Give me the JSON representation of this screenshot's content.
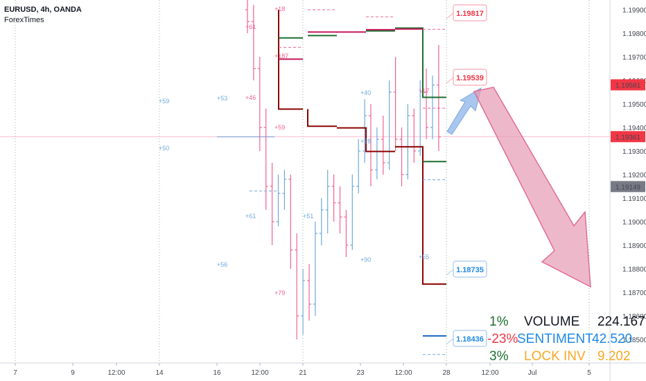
{
  "header": {
    "symbol_line": "EURUSD, 4h, OANDA",
    "source": "ForexTimes"
  },
  "colors": {
    "up": "#6fa8dc",
    "down": "#f06292",
    "dark_red": "#8b0000",
    "dark_green": "#1b6e2e",
    "magenta": "#c2185b",
    "arrow": "#e79ab5",
    "price_badge_red": "#f23645",
    "price_badge_gray": "#787b86",
    "blue_text": "#1e88e5",
    "orange_text": "#f9a825"
  },
  "chart_data": {
    "type": "candlestick-bars",
    "ylim": [
      1.1842,
      1.1997
    ],
    "y_ticks": [
      "1.19900",
      "1.19800",
      "1.19700",
      "1.19600",
      "1.19500",
      "1.19400",
      "1.19300",
      "1.19200",
      "1.19100",
      "1.19000",
      "1.18900",
      "1.18800",
      "1.18700",
      "1.18600",
      "1.18500"
    ],
    "x_ticks": [
      "7",
      "9",
      "12:00",
      "14",
      "16",
      "12:00",
      "21",
      "23",
      "12:00",
      "28",
      "12:00",
      "Jul",
      "5"
    ],
    "price_badges": [
      {
        "value": "1.19581",
        "color": "red"
      },
      {
        "value": "1.19361",
        "color": "red"
      },
      {
        "value": "1.19149",
        "color": "gray"
      }
    ],
    "level_labels": [
      {
        "value": "1.19817",
        "color": "red"
      },
      {
        "value": "1.19539",
        "color": "red"
      },
      {
        "value": "1.18735",
        "color": "blue"
      },
      {
        "value": "1.18436",
        "color": "blue"
      }
    ],
    "annotations": [
      {
        "text": "+59",
        "color": "blue"
      },
      {
        "text": "+50",
        "color": "blue"
      },
      {
        "text": "+53",
        "color": "blue"
      },
      {
        "text": "+56",
        "color": "blue"
      },
      {
        "text": "+61",
        "color": "blue"
      },
      {
        "text": "+51",
        "color": "blue"
      },
      {
        "text": "+40",
        "color": "blue"
      },
      {
        "text": "+28",
        "color": "blue"
      },
      {
        "text": "+90",
        "color": "blue"
      },
      {
        "text": "+55",
        "color": "blue"
      },
      {
        "text": "+61",
        "color": "pink"
      },
      {
        "text": "+46",
        "color": "pink"
      },
      {
        "text": "+59",
        "color": "pink"
      },
      {
        "text": "+79",
        "color": "pink"
      },
      {
        "text": "+18",
        "color": "pink"
      },
      {
        "text": "+187",
        "color": "pink"
      },
      {
        "text": "+17",
        "color": "pink"
      }
    ],
    "candles": [
      {
        "o": 1.199,
        "h": 1.1998,
        "l": 1.198,
        "c": 1.1985
      },
      {
        "o": 1.1985,
        "h": 1.1992,
        "l": 1.196,
        "c": 1.1965
      },
      {
        "o": 1.1965,
        "h": 1.197,
        "l": 1.193,
        "c": 1.194
      },
      {
        "o": 1.194,
        "h": 1.1948,
        "l": 1.1905,
        "c": 1.1915
      },
      {
        "o": 1.1915,
        "h": 1.1925,
        "l": 1.189,
        "c": 1.19
      },
      {
        "o": 1.19,
        "h": 1.192,
        "l": 1.1898,
        "c": 1.1912
      },
      {
        "o": 1.1912,
        "h": 1.1922,
        "l": 1.1905,
        "c": 1.1918
      },
      {
        "o": 1.1918,
        "h": 1.192,
        "l": 1.188,
        "c": 1.1888
      },
      {
        "o": 1.1888,
        "h": 1.1895,
        "l": 1.185,
        "c": 1.186
      },
      {
        "o": 1.186,
        "h": 1.188,
        "l": 1.1852,
        "c": 1.1875
      },
      {
        "o": 1.1875,
        "h": 1.1882,
        "l": 1.1858,
        "c": 1.1865
      },
      {
        "o": 1.1865,
        "h": 1.19,
        "l": 1.186,
        "c": 1.1895
      },
      {
        "o": 1.1895,
        "h": 1.191,
        "l": 1.189,
        "c": 1.1905
      },
      {
        "o": 1.1905,
        "h": 1.1922,
        "l": 1.1895,
        "c": 1.1915
      },
      {
        "o": 1.1915,
        "h": 1.192,
        "l": 1.19,
        "c": 1.1908
      },
      {
        "o": 1.1908,
        "h": 1.1915,
        "l": 1.1895,
        "c": 1.1902
      },
      {
        "o": 1.1902,
        "h": 1.1905,
        "l": 1.1885,
        "c": 1.189
      },
      {
        "o": 1.189,
        "h": 1.192,
        "l": 1.1888,
        "c": 1.1915
      },
      {
        "o": 1.1915,
        "h": 1.1935,
        "l": 1.1912,
        "c": 1.193
      },
      {
        "o": 1.193,
        "h": 1.1952,
        "l": 1.1925,
        "c": 1.1945
      },
      {
        "o": 1.1945,
        "h": 1.195,
        "l": 1.1915,
        "c": 1.1922
      },
      {
        "o": 1.1922,
        "h": 1.194,
        "l": 1.1918,
        "c": 1.1935
      },
      {
        "o": 1.1935,
        "h": 1.1945,
        "l": 1.192,
        "c": 1.1925
      },
      {
        "o": 1.1925,
        "h": 1.196,
        "l": 1.1922,
        "c": 1.1955
      },
      {
        "o": 1.1955,
        "h": 1.197,
        "l": 1.193,
        "c": 1.1935
      },
      {
        "o": 1.1935,
        "h": 1.194,
        "l": 1.1915,
        "c": 1.192
      },
      {
        "o": 1.192,
        "h": 1.195,
        "l": 1.1918,
        "c": 1.1945
      },
      {
        "o": 1.1945,
        "h": 1.1948,
        "l": 1.1925,
        "c": 1.193
      },
      {
        "o": 1.193,
        "h": 1.196,
        "l": 1.1928,
        "c": 1.1955
      },
      {
        "o": 1.1955,
        "h": 1.1965,
        "l": 1.1935,
        "c": 1.194
      },
      {
        "o": 1.194,
        "h": 1.1962,
        "l": 1.1935,
        "c": 1.1958
      },
      {
        "o": 1.1958,
        "h": 1.1975,
        "l": 1.193,
        "c": 1.1936
      }
    ]
  },
  "stats_table": {
    "rows": [
      {
        "pct": "1%",
        "pct_color": "#1b6e2e",
        "label": "VOLUME",
        "label_color": "#131722",
        "value": "224.167",
        "value_color": "#131722"
      },
      {
        "pct": "-23%",
        "pct_color": "#f23645",
        "label": "SENTIMENT",
        "label_color": "#1e88e5",
        "value": "42.520",
        "value_color": "#1e88e5"
      },
      {
        "pct": "3%",
        "pct_color": "#1b6e2e",
        "label": "LOCK INV",
        "label_color": "#f9a825",
        "value": "9.202",
        "value_color": "#f9a825"
      }
    ]
  }
}
